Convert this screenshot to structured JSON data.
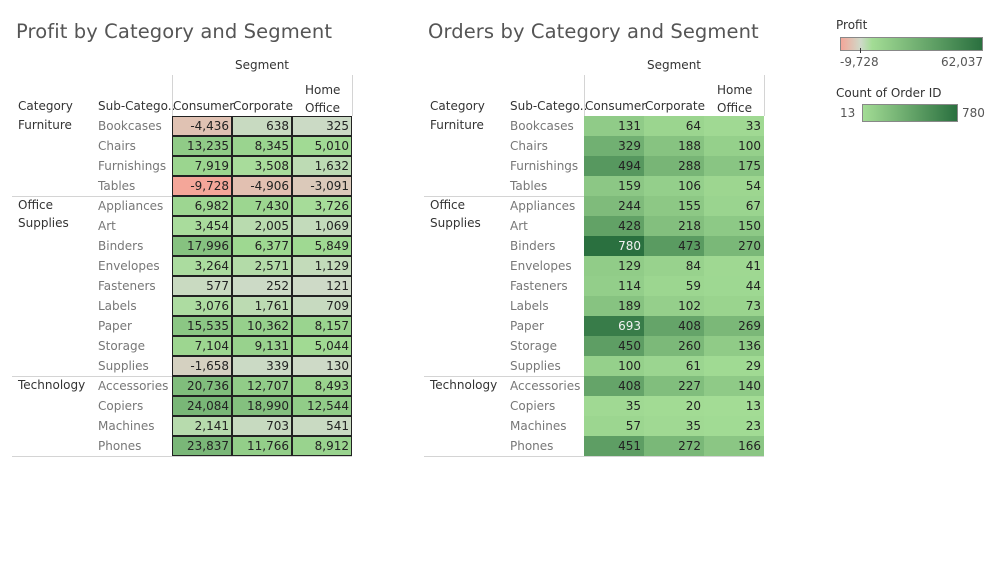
{
  "colors": {
    "neg_strong": "#f4a699",
    "neutral": "#cfdac9",
    "green_light": "#a3dc95",
    "green_dark": "#2a703f"
  },
  "chart_data": [
    {
      "type": "heatmap",
      "title": "Profit by Category and Segment",
      "column_header": "Segment",
      "row_headers": [
        "Category",
        "Sub-Catego.."
      ],
      "columns": [
        "Consumer",
        "Corporate",
        "Home Office"
      ],
      "color_range": [
        -9728,
        62037
      ],
      "groups": [
        {
          "category": "Furniture",
          "rows": [
            {
              "sub": "Bookcases",
              "values": [
                -4436,
                638,
                325
              ]
            },
            {
              "sub": "Chairs",
              "values": [
                13235,
                8345,
                5010
              ]
            },
            {
              "sub": "Furnishings",
              "values": [
                7919,
                3508,
                1632
              ]
            },
            {
              "sub": "Tables",
              "values": [
                -9728,
                -4906,
                -3091
              ]
            }
          ]
        },
        {
          "category": "Office Supplies",
          "rows": [
            {
              "sub": "Appliances",
              "values": [
                6982,
                7430,
                3726
              ]
            },
            {
              "sub": "Art",
              "values": [
                3454,
                2005,
                1069
              ]
            },
            {
              "sub": "Binders",
              "values": [
                17996,
                6377,
                5849
              ]
            },
            {
              "sub": "Envelopes",
              "values": [
                3264,
                2571,
                1129
              ]
            },
            {
              "sub": "Fasteners",
              "values": [
                577,
                252,
                121
              ]
            },
            {
              "sub": "Labels",
              "values": [
                3076,
                1761,
                709
              ]
            },
            {
              "sub": "Paper",
              "values": [
                15535,
                10362,
                8157
              ]
            },
            {
              "sub": "Storage",
              "values": [
                7104,
                9131,
                5044
              ]
            },
            {
              "sub": "Supplies",
              "values": [
                -1658,
                339,
                130
              ]
            }
          ]
        },
        {
          "category": "Technology",
          "rows": [
            {
              "sub": "Accessories",
              "values": [
                20736,
                12707,
                8493
              ]
            },
            {
              "sub": "Copiers",
              "values": [
                24084,
                18990,
                12544
              ]
            },
            {
              "sub": "Machines",
              "values": [
                2141,
                703,
                541
              ]
            },
            {
              "sub": "Phones",
              "values": [
                23837,
                11766,
                8912
              ]
            }
          ]
        }
      ]
    },
    {
      "type": "heatmap",
      "title": "Orders by Category and Segment",
      "column_header": "Segment",
      "row_headers": [
        "Category",
        "Sub-Catego.."
      ],
      "columns": [
        "Consumer",
        "Corporate",
        "Home Office"
      ],
      "color_range": [
        13,
        780
      ],
      "groups": [
        {
          "category": "Furniture",
          "rows": [
            {
              "sub": "Bookcases",
              "values": [
                131,
                64,
                33
              ]
            },
            {
              "sub": "Chairs",
              "values": [
                329,
                188,
                100
              ]
            },
            {
              "sub": "Furnishings",
              "values": [
                494,
                288,
                175
              ]
            },
            {
              "sub": "Tables",
              "values": [
                159,
                106,
                54
              ]
            }
          ]
        },
        {
          "category": "Office Supplies",
          "rows": [
            {
              "sub": "Appliances",
              "values": [
                244,
                155,
                67
              ]
            },
            {
              "sub": "Art",
              "values": [
                428,
                218,
                150
              ]
            },
            {
              "sub": "Binders",
              "values": [
                780,
                473,
                270
              ]
            },
            {
              "sub": "Envelopes",
              "values": [
                129,
                84,
                41
              ]
            },
            {
              "sub": "Fasteners",
              "values": [
                114,
                59,
                44
              ]
            },
            {
              "sub": "Labels",
              "values": [
                189,
                102,
                73
              ]
            },
            {
              "sub": "Paper",
              "values": [
                693,
                408,
                269
              ]
            },
            {
              "sub": "Storage",
              "values": [
                450,
                260,
                136
              ]
            },
            {
              "sub": "Supplies",
              "values": [
                100,
                61,
                29
              ]
            }
          ]
        },
        {
          "category": "Technology",
          "rows": [
            {
              "sub": "Accessories",
              "values": [
                408,
                227,
                140
              ]
            },
            {
              "sub": "Copiers",
              "values": [
                35,
                20,
                13
              ]
            },
            {
              "sub": "Machines",
              "values": [
                57,
                35,
                23
              ]
            },
            {
              "sub": "Phones",
              "values": [
                451,
                272,
                166
              ]
            }
          ]
        }
      ]
    }
  ],
  "legends": {
    "profit": {
      "title": "Profit",
      "min_label": "-9,728",
      "max_label": "62,037"
    },
    "orders": {
      "title": "Count of Order ID",
      "min_label": "13",
      "max_label": "780"
    }
  }
}
